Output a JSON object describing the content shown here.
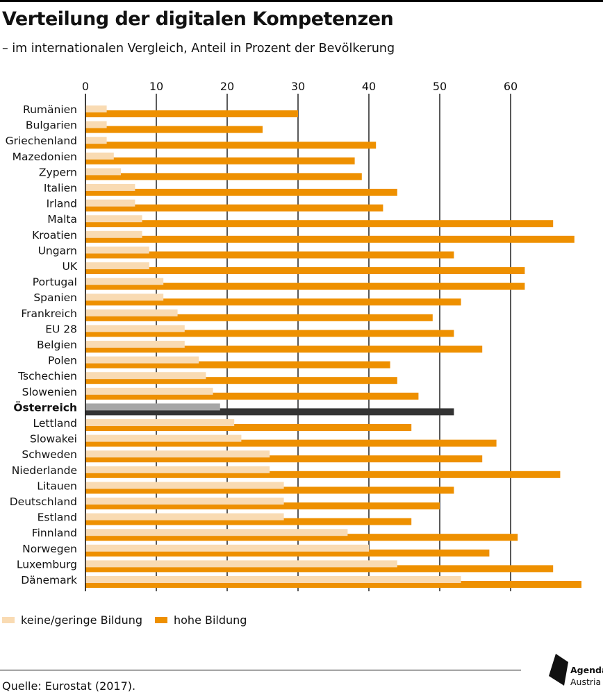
{
  "header": {
    "title": "Verteilung der digitalen Kompetenzen",
    "subtitle": "– im internationalen Vergleich, Anteil in Prozent der Bevölkerung"
  },
  "colors": {
    "low": "#F9DBB3",
    "high": "#EE9000",
    "highlight_low": "#A6A6A6",
    "highlight_high": "#333333"
  },
  "legend": {
    "low_label": "keine/geringe Bildung",
    "high_label": "hohe Bildung"
  },
  "footer": {
    "source": "Quelle: Eurostat (2017).",
    "logo_line1": "Agenda",
    "logo_line2": "Austria"
  },
  "chart_data": {
    "type": "bar",
    "orientation": "horizontal",
    "categories": [
      "Rumänien",
      "Bulgarien",
      "Griechenland",
      "Mazedonien",
      "Zypern",
      "Italien",
      "Irland",
      "Malta",
      "Kroatien",
      "Ungarn",
      "UK",
      "Portugal",
      "Spanien",
      "Frankreich",
      "EU 28",
      "Belgien",
      "Polen",
      "Tschechien",
      "Slowenien",
      "Österreich",
      "Lettland",
      "Slowakei",
      "Schweden",
      "Niederlande",
      "Litauen",
      "Deutschland",
      "Estland",
      "Finnland",
      "Norwegen",
      "Luxemburg",
      "Dänemark"
    ],
    "highlight": "Österreich",
    "series": [
      {
        "name": "keine/geringe Bildung",
        "values": [
          3,
          3,
          3,
          4,
          5,
          7,
          7,
          8,
          8,
          9,
          9,
          11,
          11,
          13,
          14,
          14,
          16,
          17,
          18,
          19,
          21,
          22,
          26,
          26,
          28,
          28,
          28,
          37,
          40,
          44,
          53
        ]
      },
      {
        "name": "hohe Bildung",
        "values": [
          30,
          25,
          41,
          38,
          39,
          44,
          42,
          66,
          69,
          52,
          62,
          62,
          53,
          49,
          52,
          56,
          43,
          44,
          47,
          52,
          46,
          58,
          56,
          67,
          52,
          50,
          46,
          61,
          57,
          66,
          70
        ]
      }
    ],
    "xlim": [
      0,
      70
    ],
    "xticks": [
      0,
      10,
      20,
      30,
      40,
      50,
      60
    ],
    "grid": true,
    "legend_position": "bottom-left"
  }
}
